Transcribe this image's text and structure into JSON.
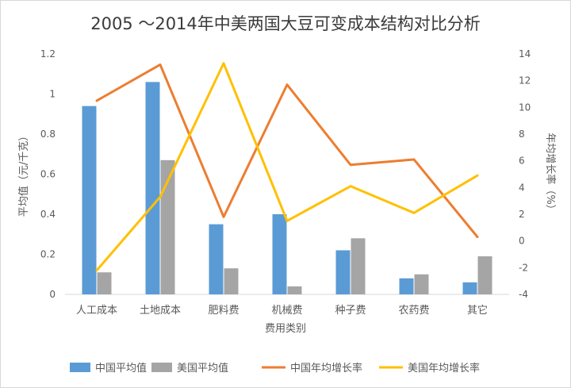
{
  "chart_data": {
    "type": "bar",
    "title": "2005 ～2014年中美两国大豆可变成本结构对比分析",
    "xlabel": "费用类别",
    "ylabel": "平均值（元/千克）",
    "y2label": "年均增长率（%）",
    "categories": [
      "人工成本",
      "土地成本",
      "肥料费",
      "机械费",
      "种子费",
      "农药费",
      "其它"
    ],
    "ylim": [
      0,
      1.2
    ],
    "yticks": [
      0,
      0.2,
      0.4,
      0.6,
      0.8,
      1,
      1.2
    ],
    "y2lim": [
      -4,
      14
    ],
    "y2ticks": [
      -4,
      -2,
      0,
      2,
      4,
      6,
      8,
      10,
      12,
      14
    ],
    "series": [
      {
        "name": "中国平均值",
        "type": "bar",
        "axis": "left",
        "color": "#5b9bd5",
        "values": [
          0.94,
          1.06,
          0.35,
          0.4,
          0.22,
          0.08,
          0.06
        ]
      },
      {
        "name": "美国平均值",
        "type": "bar",
        "axis": "left",
        "color": "#a5a5a5",
        "values": [
          0.11,
          0.67,
          0.13,
          0.04,
          0.28,
          0.1,
          0.19
        ]
      },
      {
        "name": "中国年均增长率",
        "type": "line",
        "axis": "right",
        "color": "#ed7d31",
        "values": [
          10.5,
          13.2,
          1.8,
          11.7,
          5.7,
          6.1,
          0.3
        ]
      },
      {
        "name": "美国年均增长率",
        "type": "line",
        "axis": "right",
        "color": "#ffc000",
        "values": [
          -2.2,
          3.3,
          13.3,
          1.5,
          4.1,
          2.1,
          4.9
        ]
      }
    ],
    "legend_position": "bottom",
    "grid": false
  }
}
